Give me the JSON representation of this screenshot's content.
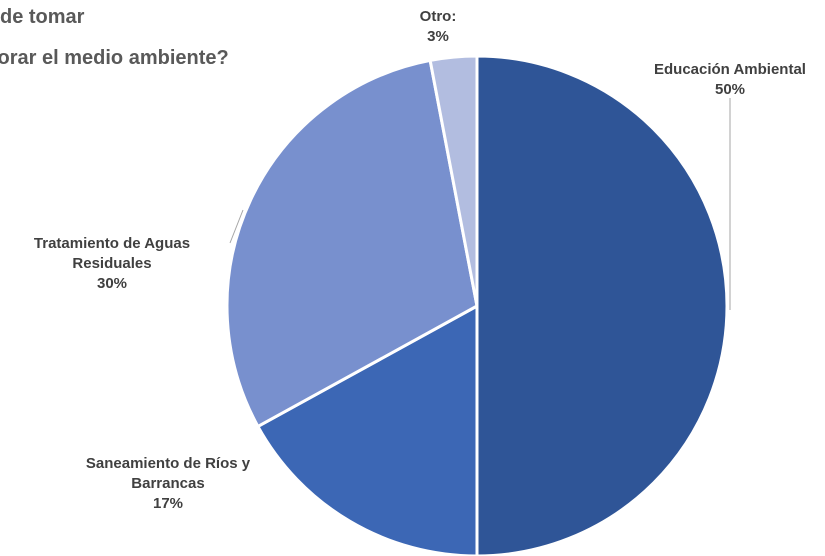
{
  "chart_data": {
    "type": "pie",
    "title_lines": [
      "de tomar",
      "jorar el medio ambiente?"
    ],
    "slices": [
      {
        "label": "Educación Ambiental",
        "label_lines": [
          "Educación Ambiental"
        ],
        "value": 50,
        "value_text": "50%",
        "color": "#2F5597"
      },
      {
        "label": "Saneamiento de Ríos y Barrancas",
        "label_lines": [
          "Saneamiento de Ríos y",
          "Barrancas"
        ],
        "value": 17,
        "value_text": "17%",
        "color": "#3C67B5"
      },
      {
        "label": "Tratamiento de Aguas Residuales",
        "label_lines": [
          "Tratamiento de Aguas",
          "Residuales"
        ],
        "value": 30,
        "value_text": "30%",
        "color": "#7890CE"
      },
      {
        "label": "Otro:",
        "label_lines": [
          "Otro:"
        ],
        "value": 3,
        "value_text": "3%",
        "color": "#B2BDE0"
      }
    ],
    "legend": "none"
  }
}
